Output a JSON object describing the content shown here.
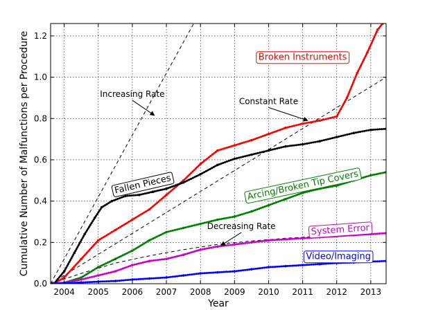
{
  "chart_data": {
    "type": "line",
    "xlabel": "Year",
    "ylabel": "Cumulative Number of Malfunctions per Procedure",
    "xlim": [
      2003.6,
      2013.45
    ],
    "ylim": [
      0,
      1.26
    ],
    "x_ticks": [
      "2004",
      "2005",
      "2006",
      "2007",
      "2008",
      "2009",
      "2010",
      "2011",
      "2012",
      "2013"
    ],
    "y_ticks": [
      "0.0",
      "0.2",
      "0.4",
      "0.6",
      "0.8",
      "1.0",
      "1.2"
    ],
    "grid": true,
    "series": [
      {
        "name": "Broken Instruments",
        "color": "#ff0000",
        "x": [
          2003.7,
          2004.0,
          2004.5,
          2005.0,
          2005.5,
          2006.0,
          2006.5,
          2007.0,
          2007.5,
          2008.0,
          2008.5,
          2009.0,
          2009.5,
          2010.0,
          2010.5,
          2011.0,
          2011.5,
          2012.0,
          2012.3,
          2012.6,
          2012.9,
          2013.2,
          2013.35
        ],
        "y": [
          0.0,
          0.03,
          0.12,
          0.21,
          0.26,
          0.31,
          0.36,
          0.43,
          0.5,
          0.58,
          0.645,
          0.67,
          0.695,
          0.725,
          0.755,
          0.775,
          0.79,
          0.81,
          0.9,
          1.02,
          1.12,
          1.23,
          1.26
        ]
      },
      {
        "name": "Fallen Pieces",
        "color": "#000000",
        "x": [
          2003.7,
          2004.0,
          2004.3,
          2004.6,
          2004.9,
          2005.1,
          2005.4,
          2005.8,
          2006.2,
          2006.6,
          2007.0,
          2007.5,
          2008.0,
          2008.5,
          2009.0,
          2009.5,
          2010.0,
          2010.5,
          2011.0,
          2011.5,
          2012.0,
          2012.5,
          2013.0,
          2013.45
        ],
        "y": [
          0.0,
          0.06,
          0.15,
          0.24,
          0.32,
          0.37,
          0.4,
          0.425,
          0.43,
          0.445,
          0.46,
          0.49,
          0.53,
          0.575,
          0.605,
          0.625,
          0.645,
          0.665,
          0.675,
          0.69,
          0.71,
          0.73,
          0.745,
          0.75
        ]
      },
      {
        "name": "Arcing/Broken Tip Covers",
        "color": "#008000",
        "x": [
          2003.7,
          2004.0,
          2004.5,
          2005.0,
          2005.5,
          2006.0,
          2006.5,
          2007.0,
          2007.5,
          2008.0,
          2008.5,
          2009.0,
          2009.5,
          2010.0,
          2010.5,
          2011.0,
          2011.5,
          2012.0,
          2012.5,
          2013.0,
          2013.45
        ],
        "y": [
          0.0,
          0.005,
          0.03,
          0.08,
          0.12,
          0.16,
          0.21,
          0.25,
          0.27,
          0.29,
          0.31,
          0.325,
          0.35,
          0.38,
          0.41,
          0.44,
          0.46,
          0.475,
          0.5,
          0.525,
          0.54
        ]
      },
      {
        "name": "System Error",
        "color": "#cc00cc",
        "x": [
          2003.7,
          2004.0,
          2004.5,
          2005.0,
          2005.5,
          2006.0,
          2006.5,
          2007.0,
          2007.5,
          2008.0,
          2008.5,
          2009.0,
          2009.5,
          2010.0,
          2010.5,
          2011.0,
          2011.5,
          2012.0,
          2012.5,
          2013.0,
          2013.45
        ],
        "y": [
          0.0,
          0.005,
          0.02,
          0.04,
          0.06,
          0.09,
          0.11,
          0.12,
          0.14,
          0.165,
          0.18,
          0.19,
          0.2,
          0.21,
          0.215,
          0.22,
          0.225,
          0.23,
          0.235,
          0.24,
          0.245
        ]
      },
      {
        "name": "Video/Imaging",
        "color": "#0000ff",
        "x": [
          2003.7,
          2004.0,
          2004.5,
          2005.0,
          2005.5,
          2006.0,
          2006.5,
          2007.0,
          2007.5,
          2008.0,
          2008.5,
          2009.0,
          2009.5,
          2010.0,
          2010.5,
          2011.0,
          2011.5,
          2012.0,
          2012.5,
          2013.0,
          2013.45
        ],
        "y": [
          0.0,
          0.003,
          0.006,
          0.01,
          0.013,
          0.02,
          0.025,
          0.03,
          0.04,
          0.05,
          0.055,
          0.06,
          0.07,
          0.08,
          0.085,
          0.09,
          0.095,
          0.1,
          0.103,
          0.107,
          0.11
        ]
      }
    ],
    "reference_lines": [
      {
        "name": "Increasing Rate",
        "x": [
          2003.6,
          2007.8
        ],
        "y": [
          0.0,
          1.26
        ]
      },
      {
        "name": "Constant Rate",
        "x": [
          2003.6,
          2013.45
        ],
        "y": [
          0.0,
          1.0
        ]
      },
      {
        "name": "Decreasing Rate",
        "x": [
          2003.6,
          2004.5,
          2005.5,
          2006.5,
          2007.5,
          2008.5,
          2009.5,
          2010.5,
          2011.5,
          2012.5,
          2013.45
        ],
        "y": [
          0.0,
          0.05,
          0.1,
          0.135,
          0.165,
          0.19,
          0.207,
          0.22,
          0.23,
          0.237,
          0.242
        ]
      }
    ],
    "annotations": [
      {
        "text": "Increasing Rate",
        "x": 2006.0,
        "y": 0.905,
        "arrow_x": 2006.65,
        "arrow_y": 0.815
      },
      {
        "text": "Constant Rate",
        "x": 2010.0,
        "y": 0.87,
        "arrow_x": 2011.15,
        "arrow_y": 0.79
      },
      {
        "text": "Decreasing Rate",
        "x": 2009.2,
        "y": 0.265,
        "arrow_x": 2008.6,
        "arrow_y": 0.185
      }
    ],
    "series_labels": [
      {
        "text": "Broken Instruments",
        "x": 2011.0,
        "y": 1.1,
        "color": "#ff0000",
        "rotate": 0
      },
      {
        "text": "Fallen Pieces",
        "x": 2006.3,
        "y": 0.485,
        "color": "#000000",
        "rotate": -13
      },
      {
        "text": "Arcing/Broken Tip Covers",
        "x": 2011.0,
        "y": 0.48,
        "color": "#008000",
        "rotate": -12
      },
      {
        "text": "System Error",
        "x": 2012.1,
        "y": 0.265,
        "color": "#cc00cc",
        "rotate": -4
      },
      {
        "text": "Video/Imaging",
        "x": 2012.05,
        "y": 0.135,
        "color": "#0000ff",
        "rotate": 0
      }
    ]
  }
}
